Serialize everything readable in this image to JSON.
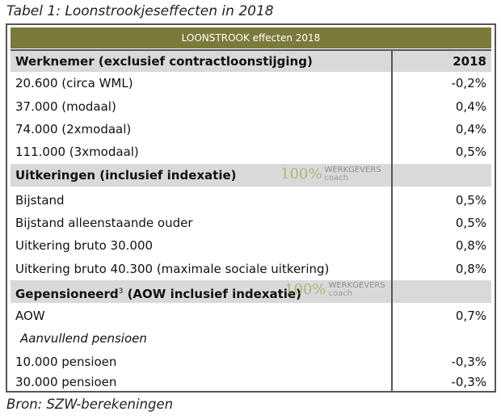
{
  "caption": "Tabel 1: Loonstrookjeseffecten in 2018",
  "banner": "LOONSTROOK effecten 2018",
  "sections": [
    {
      "title": "Werknemer (exclusief contractloonstijging)",
      "year": "2018",
      "rows": [
        {
          "label": "20.600 (circa WML)",
          "value": "-0,2%"
        },
        {
          "label": "37.000 (modaal)",
          "value": "0,4%"
        },
        {
          "label": "74.000 (2xmodaal)",
          "value": "0,4%"
        },
        {
          "label": "111.000 (3xmodaal)",
          "value": "0,5%"
        }
      ]
    },
    {
      "title": "Uitkeringen (inclusief indexatie)",
      "rows": [
        {
          "label": "Bijstand",
          "value": "0,5%"
        },
        {
          "label": "Bijstand alleenstaande ouder",
          "value": "0,5%"
        },
        {
          "label": "Uitkering bruto 30.000",
          "value": "0,8%"
        },
        {
          "label": "Uitkering bruto 40.300 (maximale sociale uitkering)",
          "value": "0,8%"
        }
      ]
    },
    {
      "title_main": "Gepensioneerd",
      "title_sup": "3",
      "title_rest": " (AOW inclusief indexatie)",
      "rows": [
        {
          "label": "AOW",
          "value": "0,7%"
        },
        {
          "label": "Aanvullend pensioen",
          "value": ""
        },
        {
          "label": "10.000 pensioen",
          "value": "-0,3%"
        },
        {
          "label": "30.000 pensioen",
          "value": "-0,3%"
        }
      ]
    }
  ],
  "watermark": {
    "percent": "100%",
    "line1": "WERKGEVERS",
    "line2": "coach"
  },
  "source": "Bron: SZW-berekeningen"
}
